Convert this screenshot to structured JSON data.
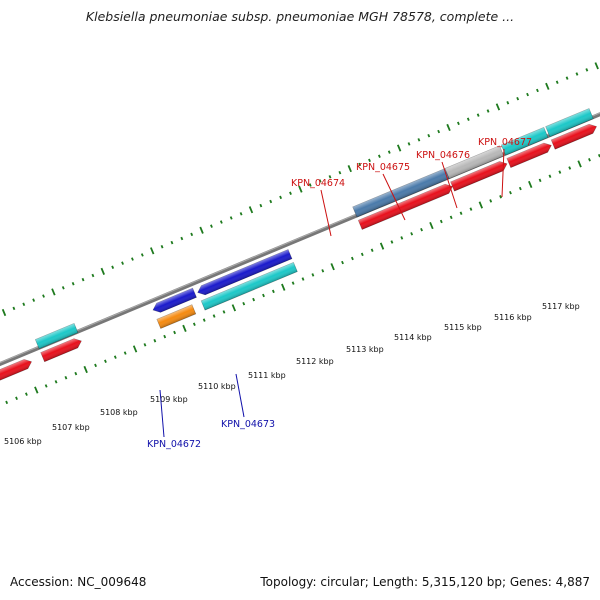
{
  "title": "Klebsiella pneumoniae subsp. pneumoniae MGH 78578, complete ...",
  "footer": {
    "accession": "Accession: NC_009648",
    "topology": "Topology: circular; Length: 5,315,120 bp; Genes: 4,887"
  },
  "colors": {
    "red_gene": "#e8101c",
    "cyan_gene": "#1cc8c8",
    "blue_gene": "#1a1acc",
    "orange_gene": "#f58a10",
    "steel_gene": "#4a7aaa",
    "gray_gene": "#b8b8b8",
    "backbone": "#777777",
    "tick": "#1e7a1e",
    "label_red": "#cc1111",
    "label_blue": "#1111aa"
  },
  "kbp_ticks": [
    {
      "label": "5106 kbp"
    },
    {
      "label": "5107 kbp"
    },
    {
      "label": "5108 kbp"
    },
    {
      "label": "5109 kbp"
    },
    {
      "label": "5110 kbp"
    },
    {
      "label": "5111 kbp"
    },
    {
      "label": "5112 kbp"
    },
    {
      "label": "5113 kbp"
    },
    {
      "label": "5114 kbp"
    },
    {
      "label": "5115 kbp"
    },
    {
      "label": "5116 kbp"
    },
    {
      "label": "5117 kbp"
    }
  ],
  "gene_labels": [
    {
      "text": "KPN_04674",
      "color": "label_red"
    },
    {
      "text": "KPN_04675",
      "color": "label_red"
    },
    {
      "text": "KPN_04676",
      "color": "label_red"
    },
    {
      "text": "KPN_04677",
      "color": "label_red"
    },
    {
      "text": "KPN_04672",
      "color": "label_blue"
    },
    {
      "text": "KPN_04673",
      "color": "label_blue"
    }
  ]
}
